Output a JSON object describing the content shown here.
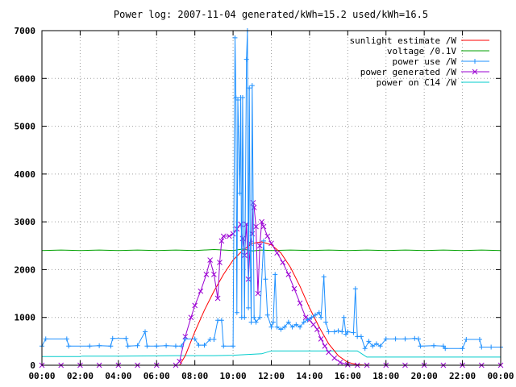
{
  "chart_data": {
    "type": "line",
    "title": "Power log: 2007-11-04 generated/kWh=15.2 used/kWh=16.5",
    "xlabel": "",
    "ylabel": "",
    "xlim": [
      0,
      24
    ],
    "ylim": [
      0,
      7000
    ],
    "x_ticks": [
      {
        "value": 0,
        "label": "00:00"
      },
      {
        "value": 2,
        "label": "02:00"
      },
      {
        "value": 4,
        "label": "04:00"
      },
      {
        "value": 6,
        "label": "06:00"
      },
      {
        "value": 8,
        "label": "08:00"
      },
      {
        "value": 10,
        "label": "10:00"
      },
      {
        "value": 12,
        "label": "12:00"
      },
      {
        "value": 14,
        "label": "14:00"
      },
      {
        "value": 16,
        "label": "16:00"
      },
      {
        "value": 18,
        "label": "18:00"
      },
      {
        "value": 20,
        "label": "20:00"
      },
      {
        "value": 22,
        "label": "22:00"
      },
      {
        "value": 24,
        "label": "00:00"
      }
    ],
    "y_ticks": [
      {
        "value": 0,
        "label": "0"
      },
      {
        "value": 1000,
        "label": "1000"
      },
      {
        "value": 2000,
        "label": "2000"
      },
      {
        "value": 3000,
        "label": "3000"
      },
      {
        "value": 4000,
        "label": "4000"
      },
      {
        "value": 5000,
        "label": "5000"
      },
      {
        "value": 6000,
        "label": "6000"
      },
      {
        "value": 7000,
        "label": "7000"
      }
    ],
    "grid": true,
    "legend_position": "top-right",
    "series": [
      {
        "name": "sunlight estimate /W",
        "color": "#ff0000",
        "marker": "none",
        "points": [
          [
            7.2,
            0
          ],
          [
            7.5,
            200
          ],
          [
            8,
            700
          ],
          [
            8.5,
            1150
          ],
          [
            9,
            1550
          ],
          [
            9.5,
            1900
          ],
          [
            10,
            2200
          ],
          [
            10.5,
            2400
          ],
          [
            11,
            2550
          ],
          [
            11.5,
            2580
          ],
          [
            12,
            2520
          ],
          [
            12.5,
            2350
          ],
          [
            13,
            2050
          ],
          [
            13.5,
            1650
          ],
          [
            14,
            1200
          ],
          [
            14.5,
            800
          ],
          [
            15,
            450
          ],
          [
            15.5,
            200
          ],
          [
            16,
            60
          ],
          [
            16.5,
            10
          ],
          [
            17,
            0
          ]
        ]
      },
      {
        "name": "voltage /0.1V",
        "color": "#00a000",
        "marker": "none",
        "points": [
          [
            0,
            2400
          ],
          [
            1,
            2410
          ],
          [
            2,
            2400
          ],
          [
            3,
            2410
          ],
          [
            4,
            2400
          ],
          [
            5,
            2410
          ],
          [
            6,
            2400
          ],
          [
            7,
            2410
          ],
          [
            8,
            2400
          ],
          [
            9,
            2420
          ],
          [
            10,
            2400
          ],
          [
            10.5,
            2430
          ],
          [
            11,
            2390
          ],
          [
            11.5,
            2410
          ],
          [
            12,
            2400
          ],
          [
            13,
            2410
          ],
          [
            14,
            2400
          ],
          [
            15,
            2410
          ],
          [
            16,
            2400
          ],
          [
            17,
            2410
          ],
          [
            18,
            2400
          ],
          [
            19,
            2410
          ],
          [
            20,
            2400
          ],
          [
            21,
            2410
          ],
          [
            22,
            2400
          ],
          [
            23,
            2410
          ],
          [
            24,
            2400
          ]
        ]
      },
      {
        "name": "power use /W",
        "color": "#1e90ff",
        "marker": "plus",
        "points": [
          [
            0,
            400
          ],
          [
            0.2,
            550
          ],
          [
            1.3,
            550
          ],
          [
            1.4,
            400
          ],
          [
            2.5,
            400
          ],
          [
            3,
            410
          ],
          [
            3.6,
            400
          ],
          [
            3.7,
            560
          ],
          [
            4.4,
            560
          ],
          [
            4.5,
            400
          ],
          [
            5,
            410
          ],
          [
            5.4,
            700
          ],
          [
            5.5,
            400
          ],
          [
            6,
            400
          ],
          [
            6.5,
            410
          ],
          [
            7,
            400
          ],
          [
            7.3,
            400
          ],
          [
            7.5,
            550
          ],
          [
            8,
            550
          ],
          [
            8.2,
            420
          ],
          [
            8.5,
            420
          ],
          [
            8.8,
            540
          ],
          [
            9,
            540
          ],
          [
            9.2,
            940
          ],
          [
            9.4,
            940
          ],
          [
            9.5,
            400
          ],
          [
            10,
            400
          ],
          [
            10.1,
            6850
          ],
          [
            10.15,
            5600
          ],
          [
            10.2,
            1100
          ],
          [
            10.25,
            5550
          ],
          [
            10.35,
            3600
          ],
          [
            10.4,
            5600
          ],
          [
            10.45,
            1000
          ],
          [
            10.5,
            5600
          ],
          [
            10.6,
            1000
          ],
          [
            10.7,
            6400
          ],
          [
            10.75,
            7000
          ],
          [
            10.8,
            1200
          ],
          [
            10.85,
            5800
          ],
          [
            10.9,
            2400
          ],
          [
            10.95,
            900
          ],
          [
            11,
            5850
          ],
          [
            11.1,
            1000
          ],
          [
            11.2,
            900
          ],
          [
            11.4,
            1000
          ],
          [
            11.6,
            2600
          ],
          [
            11.7,
            1800
          ],
          [
            11.8,
            1050
          ],
          [
            12,
            800
          ],
          [
            12.1,
            900
          ],
          [
            12.2,
            1900
          ],
          [
            12.3,
            800
          ],
          [
            12.5,
            750
          ],
          [
            12.7,
            800
          ],
          [
            12.9,
            900
          ],
          [
            13.1,
            800
          ],
          [
            13.3,
            850
          ],
          [
            13.5,
            800
          ],
          [
            13.7,
            900
          ],
          [
            13.9,
            950
          ],
          [
            14.1,
            1000
          ],
          [
            14.3,
            1050
          ],
          [
            14.5,
            1100
          ],
          [
            14.6,
            1000
          ],
          [
            14.75,
            1850
          ],
          [
            14.85,
            900
          ],
          [
            15,
            700
          ],
          [
            15.3,
            700
          ],
          [
            15.5,
            720
          ],
          [
            15.7,
            700
          ],
          [
            15.8,
            1000
          ],
          [
            15.9,
            650
          ],
          [
            16,
            700
          ],
          [
            16.3,
            680
          ],
          [
            16.4,
            1600
          ],
          [
            16.5,
            600
          ],
          [
            16.7,
            600
          ],
          [
            16.9,
            350
          ],
          [
            17.1,
            500
          ],
          [
            17.3,
            400
          ],
          [
            17.5,
            450
          ],
          [
            17.7,
            400
          ],
          [
            18,
            550
          ],
          [
            18.5,
            550
          ],
          [
            19,
            550
          ],
          [
            19.5,
            560
          ],
          [
            19.7,
            550
          ],
          [
            19.8,
            400
          ],
          [
            20.5,
            410
          ],
          [
            21,
            400
          ],
          [
            21.1,
            350
          ],
          [
            22,
            350
          ],
          [
            22.2,
            540
          ],
          [
            22.9,
            540
          ],
          [
            23,
            380
          ],
          [
            23.5,
            380
          ],
          [
            24,
            380
          ]
        ]
      },
      {
        "name": "power generated /W",
        "color": "#9b00d3",
        "marker": "cross",
        "points": [
          [
            0,
            0
          ],
          [
            1,
            0
          ],
          [
            2,
            0
          ],
          [
            3,
            0
          ],
          [
            4,
            0
          ],
          [
            5,
            0
          ],
          [
            6,
            0
          ],
          [
            7,
            0
          ],
          [
            7.2,
            80
          ],
          [
            7.5,
            600
          ],
          [
            7.8,
            1000
          ],
          [
            8,
            1250
          ],
          [
            8.3,
            1550
          ],
          [
            8.6,
            1900
          ],
          [
            8.8,
            2200
          ],
          [
            9,
            1900
          ],
          [
            9.2,
            1400
          ],
          [
            9.3,
            2150
          ],
          [
            9.4,
            2600
          ],
          [
            9.5,
            2700
          ],
          [
            9.8,
            2700
          ],
          [
            10,
            2750
          ],
          [
            10.2,
            2850
          ],
          [
            10.4,
            2950
          ],
          [
            10.5,
            2650
          ],
          [
            10.6,
            2300
          ],
          [
            10.7,
            2950
          ],
          [
            10.8,
            1800
          ],
          [
            10.9,
            2550
          ],
          [
            11,
            2750
          ],
          [
            11.05,
            3400
          ],
          [
            11.1,
            3300
          ],
          [
            11.2,
            2900
          ],
          [
            11.3,
            1500
          ],
          [
            11.4,
            2500
          ],
          [
            11.5,
            3000
          ],
          [
            11.6,
            2900
          ],
          [
            11.8,
            2700
          ],
          [
            12,
            2550
          ],
          [
            12.3,
            2350
          ],
          [
            12.6,
            2150
          ],
          [
            12.9,
            1900
          ],
          [
            13.2,
            1600
          ],
          [
            13.5,
            1300
          ],
          [
            13.8,
            1000
          ],
          [
            14,
            950
          ],
          [
            14.2,
            850
          ],
          [
            14.4,
            750
          ],
          [
            14.6,
            550
          ],
          [
            14.8,
            400
          ],
          [
            15,
            270
          ],
          [
            15.3,
            150
          ],
          [
            15.6,
            60
          ],
          [
            16,
            10
          ],
          [
            16.5,
            0
          ],
          [
            17,
            0
          ],
          [
            18,
            0
          ],
          [
            19,
            0
          ],
          [
            20,
            0
          ],
          [
            21,
            0
          ],
          [
            22,
            0
          ],
          [
            23,
            0
          ],
          [
            24,
            0
          ]
        ]
      },
      {
        "name": "power on C14 /W",
        "color": "#00cccc",
        "marker": "none",
        "points": [
          [
            0,
            180
          ],
          [
            2,
            180
          ],
          [
            2.1,
            190
          ],
          [
            4,
            190
          ],
          [
            6,
            195
          ],
          [
            7,
            200
          ],
          [
            8,
            200
          ],
          [
            9,
            200
          ],
          [
            10,
            210
          ],
          [
            11,
            230
          ],
          [
            11.5,
            240
          ],
          [
            12,
            300
          ],
          [
            14,
            300
          ],
          [
            15,
            300
          ],
          [
            16,
            300
          ],
          [
            16.5,
            300
          ],
          [
            17,
            170
          ],
          [
            18,
            170
          ],
          [
            20,
            170
          ],
          [
            22,
            170
          ],
          [
            24,
            170
          ]
        ]
      }
    ]
  }
}
